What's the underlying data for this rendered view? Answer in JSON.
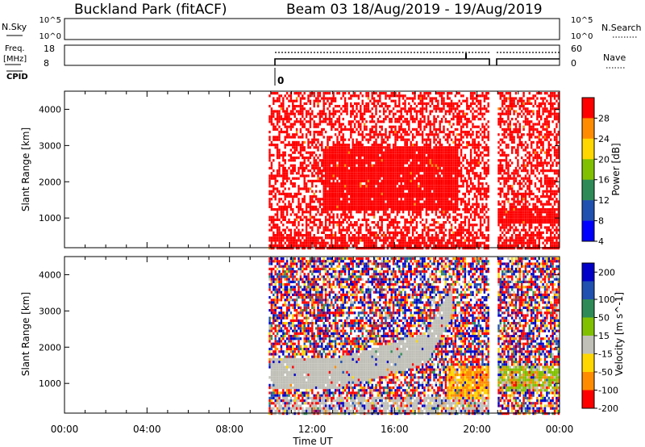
{
  "header": {
    "station": "Buckland Park (fitACF)",
    "beam": "Beam 03  18/Aug/2019 - 19/Aug/2019"
  },
  "strips": {
    "nsky_label": "N.Sky",
    "nsky_ticks": [
      "10^5",
      "10^0"
    ],
    "nsearch_label": "N.Search",
    "nsearch_ticks": [
      "10^5",
      "10^0"
    ],
    "freq_label": "Freq.",
    "freq_unit": "[MHz]",
    "freq_ticks": [
      "18",
      "8"
    ],
    "nave_label": "Nave",
    "nave_ticks": [
      "60",
      "0"
    ],
    "cpid_label": "CPID",
    "cpid_value": "0"
  },
  "chart_data": [
    {
      "type": "heatmap",
      "name": "power-panel",
      "ylabel": "Slant Range [km]",
      "yticks": [
        1000,
        2000,
        3000,
        4000
      ],
      "ylim": [
        180,
        4500
      ],
      "xlim_hours": [
        0,
        24
      ],
      "colorbar_label": "Power [dB]",
      "colorbar_ticks": [
        "28",
        "24",
        "20",
        "16",
        "12",
        "8",
        "4"
      ],
      "colorbar_colors": [
        "#ff0000",
        "#ff8c00",
        "#ffd700",
        "#80c000",
        "#2e8b57",
        "#2050b0",
        "#0000ff"
      ],
      "data_windows_hours": [
        [
          9.9,
          20.6
        ],
        [
          21.0,
          24.0
        ]
      ],
      "dominant_color": "#ff0000"
    },
    {
      "type": "heatmap",
      "name": "velocity-panel",
      "ylabel": "Slant Range [km]",
      "yticks": [
        1000,
        2000,
        3000,
        4000
      ],
      "ylim": [
        180,
        4500
      ],
      "xlim_hours": [
        0,
        24
      ],
      "colorbar_label": "Velocity [m s^-1]",
      "colorbar_ticks": [
        "200",
        "100",
        "50",
        "15",
        "-15",
        "-50",
        "-100",
        "-200"
      ],
      "colorbar_colors": [
        "#0000c8",
        "#2050b0",
        "#2e8b57",
        "#80c000",
        "#c0c0b8",
        "#ffd700",
        "#ff8c00",
        "#ff0000"
      ],
      "data_windows_hours": [
        [
          9.9,
          20.6
        ],
        [
          21.0,
          24.0
        ]
      ]
    }
  ],
  "xaxis": {
    "label": "Time UT",
    "ticks": [
      "00:00",
      "04:00",
      "08:00",
      "12:00",
      "16:00",
      "20:00",
      "00:00"
    ]
  }
}
